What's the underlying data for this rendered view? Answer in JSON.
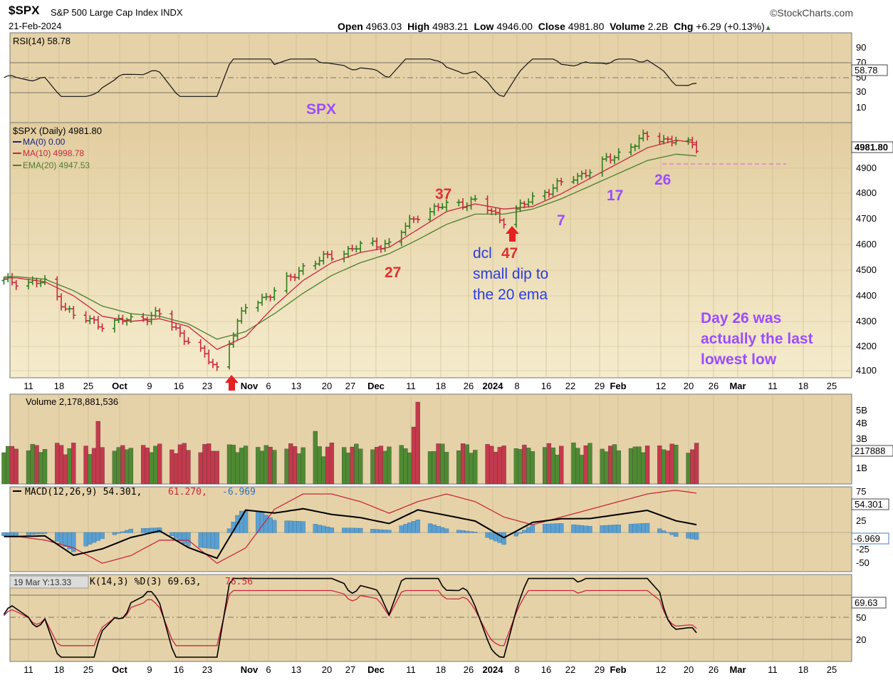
{
  "header": {
    "symbol": "$SPX",
    "name": "S&P 500 Large Cap Index",
    "exchange": "INDX",
    "date": "21-Feb-2024",
    "brand": "©StockCharts.com",
    "open_label": "Open",
    "open": "4963.03",
    "high_label": "High",
    "high": "4983.21",
    "low_label": "Low",
    "low": "4946.00",
    "close_label": "Close",
    "close": "4981.80",
    "volume_label": "Volume",
    "volume": "2.2B",
    "chg_label": "Chg",
    "chg": "+6.29 (+0.13%)"
  },
  "colors": {
    "panel_bg": "#e6d2a8",
    "up": "#2e7d1e",
    "down": "#c8283c",
    "ma10": "#c8283c",
    "ema20": "#4a7f2e",
    "annotation_purple": "#9b4dff",
    "annotation_blue": "#2c3ce0",
    "annotation_red": "#e03030",
    "volume_up": "#4f8a33",
    "volume_down": "#c33a4d",
    "macd_hist": "#5ba0d0"
  },
  "panels": {
    "rsi": {
      "legend": "RSI(14) 58.78",
      "value_tag": "58.78",
      "ticks": [
        "90",
        "70",
        "50",
        "30",
        "10"
      ],
      "watermark": "SPX"
    },
    "price": {
      "legend": [
        "$SPX (Daily) 4981.80",
        "MA(0) 0.00",
        "MA(10) 4998.78",
        "EMA(20) 4947.53"
      ],
      "value_tag": "4981.80",
      "ticks": [
        "4900",
        "4800",
        "4700",
        "4600",
        "4500",
        "4400",
        "4300",
        "4200",
        "4100"
      ]
    },
    "volume": {
      "legend": "Volume 2,178,881,536",
      "value_tag": "217888",
      "ticks": [
        "5B",
        "4B",
        "3B",
        "1B"
      ]
    },
    "macd": {
      "legend_main": "MACD(12,26,9) 54.301,",
      "legend_signal": "61.270,",
      "legend_hist": "-6.969",
      "value_tag_1": "54.301",
      "value_tag_2": "-6.969",
      "ticks": [
        "75",
        "25",
        "-25",
        "-50"
      ]
    },
    "stoch": {
      "legend_prefix": "19 Mar Y:13.33",
      "legend_main": "K(14,3) %D(3) 69.63,",
      "legend_signal": "76.56",
      "value_tag": "69.63",
      "ticks": [
        "50",
        "20"
      ]
    }
  },
  "x_axis_labels": [
    "11",
    "18",
    "25",
    "Oct",
    "9",
    "16",
    "23",
    "Nov",
    "6",
    "13",
    "20",
    "27",
    "Dec",
    "11",
    "18",
    "26",
    "2024",
    "8",
    "16",
    "22",
    "29",
    "Feb",
    "12",
    "20",
    "26",
    "Mar",
    "11",
    "18",
    "25"
  ],
  "annotations": {
    "n37": "37",
    "n27": "27",
    "n47": "47",
    "n7": "7",
    "n17": "17",
    "n26": "26",
    "dcl_1": "dcl",
    "dcl_2": "small dip to",
    "dcl_3": "the 20 ema",
    "day_1": "Day 26 was",
    "day_2": "actually the last",
    "day_3": "lowest low"
  },
  "chart_data": {
    "type": "line",
    "title": "$SPX (Daily) 4981.80",
    "x": [
      "2023-09-08",
      "2023-09-15",
      "2023-09-22",
      "2023-09-29",
      "2023-10-06",
      "2023-10-13",
      "2023-10-20",
      "2023-10-27",
      "2023-11-03",
      "2023-11-10",
      "2023-11-17",
      "2023-11-24",
      "2023-12-01",
      "2023-12-08",
      "2023-12-15",
      "2023-12-22",
      "2023-12-29",
      "2024-01-05",
      "2024-01-12",
      "2024-01-19",
      "2024-01-26",
      "2024-02-02",
      "2024-02-09",
      "2024-02-16",
      "2024-02-21"
    ],
    "series": [
      {
        "name": "$SPX",
        "values": [
          4457,
          4450,
          4320,
          4288,
          4308,
          4327,
          4224,
          4117,
          4358,
          4415,
          4514,
          4559,
          4595,
          4604,
          4719,
          4755,
          4770,
          4697,
          4784,
          4840,
          4891,
          4959,
          5027,
          5006,
          4982
        ]
      },
      {
        "name": "MA(10)",
        "values": [
          4470,
          4455,
          4400,
          4320,
          4300,
          4310,
          4280,
          4190,
          4240,
          4360,
          4460,
          4530,
          4570,
          4590,
          4660,
          4730,
          4760,
          4740,
          4750,
          4800,
          4860,
          4920,
          4980,
          5010,
          4999
        ]
      },
      {
        "name": "EMA(20)",
        "values": [
          4475,
          4465,
          4420,
          4360,
          4330,
          4320,
          4290,
          4230,
          4260,
          4330,
          4410,
          4480,
          4530,
          4565,
          4620,
          4680,
          4720,
          4720,
          4740,
          4780,
          4830,
          4880,
          4930,
          4955,
          4948
        ]
      }
    ],
    "ylim": [
      4070,
      5040
    ],
    "rsi": {
      "name": "RSI(14)",
      "last": 58.78
    },
    "volume": {
      "name": "Volume",
      "last": 2178881536
    },
    "macd": {
      "macd": 54.301,
      "signal": 61.27,
      "histogram": -6.969
    },
    "stochastic": {
      "k": 69.63,
      "d": 76.56
    },
    "legend": "top-left",
    "grid": true
  }
}
